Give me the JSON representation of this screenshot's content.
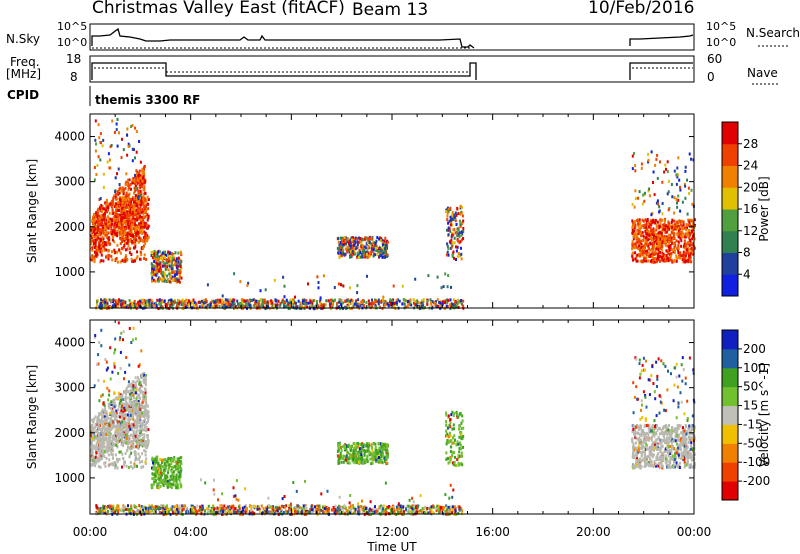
{
  "header": {
    "title": "Christmas Valley East (fitACF)",
    "beam": "Beam 13",
    "date": "10/Feb/2016"
  },
  "strips": {
    "nsky_label": "N.Sky",
    "nsearch_label": "N.Search",
    "nsky_ticks": [
      "10^5",
      "10^0"
    ],
    "nsky_right_ticks": [
      "10^5",
      "10^0"
    ],
    "freq_label": "Freq.",
    "freq_unit": "[MHz]",
    "freq_ticks": [
      "18",
      "8"
    ],
    "nave_label": "Nave",
    "nave_ticks": [
      "60",
      "0"
    ],
    "cpid_label": "CPID",
    "cpid_value": "themis 3300 RF"
  },
  "colors": {
    "power": [
      "#1020e0",
      "#2040a0",
      "#308050",
      "#50a040",
      "#e0c000",
      "#f08000",
      "#f04000",
      "#e00000"
    ],
    "velocity": [
      "#e00000",
      "#f04000",
      "#f08000",
      "#f0c000",
      "#c0c0b8",
      "#70c030",
      "#40a020",
      "#2060a0",
      "#1020c0"
    ],
    "ground": "#b8b8b0"
  },
  "chart_data": [
    {
      "type": "heatmap",
      "name": "power",
      "ylabel": "Slant Range [km]",
      "xlabel": "Time UT",
      "xticks": [
        "00:00",
        "04:00",
        "08:00",
        "12:00",
        "16:00",
        "20:00",
        "00:00"
      ],
      "yticks": [
        "1000",
        "2000",
        "3000",
        "4000"
      ],
      "ylim": [
        200,
        4500
      ],
      "xlim_hours": [
        0,
        24
      ],
      "colorbar_label": "Power [dB]",
      "colorbar_ticks": [
        "4",
        "8",
        "12",
        "16",
        "20",
        "24",
        "28"
      ],
      "colorbar_range": [
        0,
        32
      ]
    },
    {
      "type": "heatmap",
      "name": "velocity",
      "ylabel": "Slant Range [km]",
      "xlabel": "Time UT",
      "xticks": [
        "00:00",
        "04:00",
        "08:00",
        "12:00",
        "16:00",
        "20:00",
        "00:00"
      ],
      "yticks": [
        "1000",
        "2000",
        "3000",
        "4000"
      ],
      "ylim": [
        200,
        4500
      ],
      "xlim_hours": [
        0,
        24
      ],
      "colorbar_label": "Velocity [m s^-1]",
      "colorbar_ticks": [
        "-200",
        "-100",
        "-50",
        "-15",
        "15",
        "50",
        "100",
        "200"
      ]
    }
  ]
}
